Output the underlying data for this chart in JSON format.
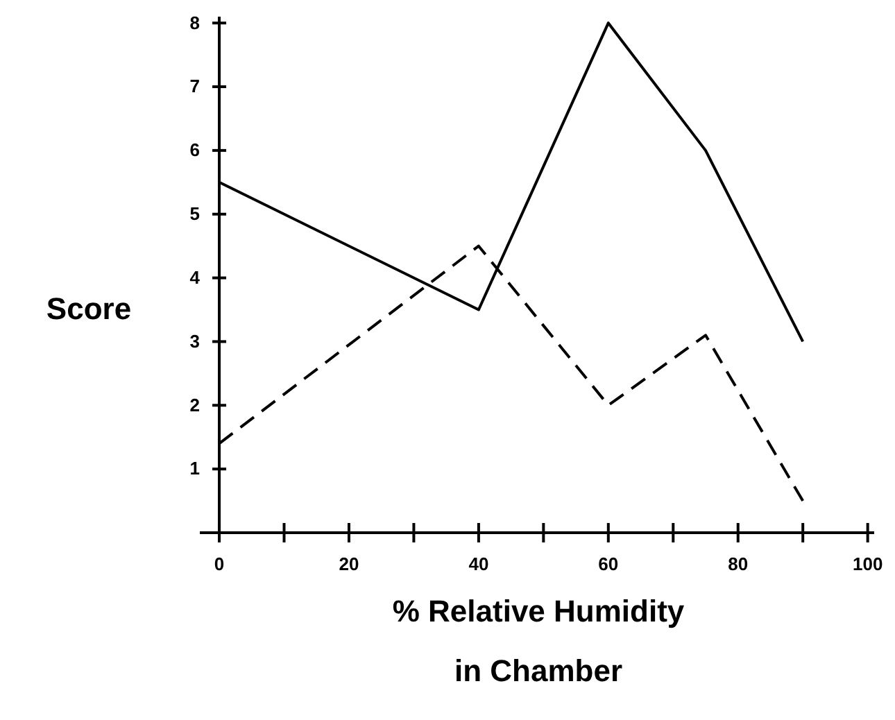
{
  "chart_data": {
    "type": "line",
    "xlabel": "% Relative Humidity\nin Chamber",
    "ylabel": "Score",
    "x": [
      0,
      40,
      60,
      75,
      90
    ],
    "series": [
      {
        "color": "#000000",
        "line_style": "solid",
        "values": [
          5.5,
          3.5,
          8,
          6,
          3
        ]
      },
      {
        "color": "#000000",
        "line_style": "dashed",
        "values": [
          1.4,
          4.5,
          2,
          3.1,
          0.5
        ]
      }
    ],
    "xlim": [
      -3,
      101
    ],
    "ylim": [
      0,
      8.1
    ],
    "xticks": [
      0,
      {
        "value": 10,
        "label": null
      },
      20,
      {
        "value": 30,
        "label": null
      },
      40,
      {
        "value": 50,
        "label": null
      },
      60,
      {
        "value": 70,
        "label": null
      },
      80,
      {
        "value": 90,
        "label": null
      },
      100
    ],
    "yticks": [
      1,
      2,
      3,
      4,
      5,
      6,
      7,
      8
    ],
    "grid": false,
    "marker": "none"
  }
}
